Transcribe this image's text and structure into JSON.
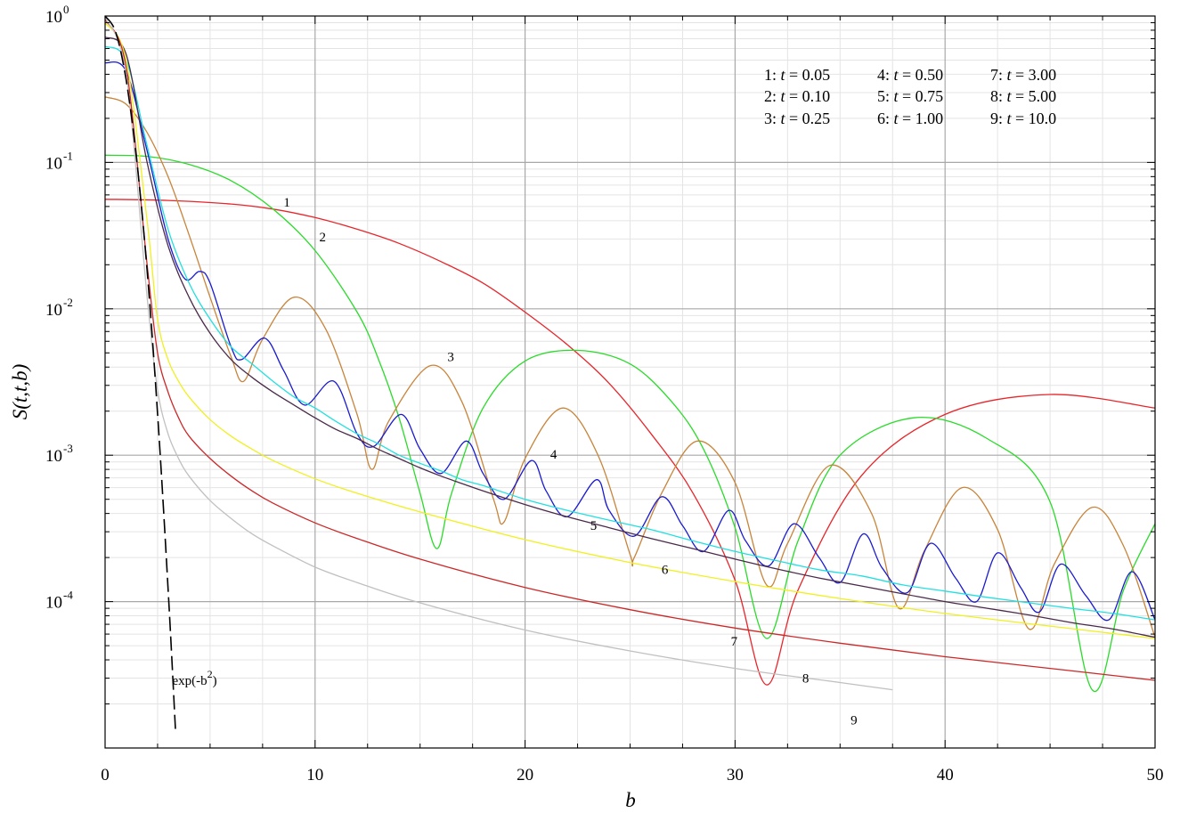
{
  "chart_data": {
    "type": "line",
    "xlabel": "b",
    "ylabel": "S(t,t,b)",
    "xlim": [
      0,
      50
    ],
    "ylim": [
      1e-05,
      1
    ],
    "yscale": "log",
    "grid": true,
    "x_ticks": [
      "0",
      "10",
      "20",
      "30",
      "40",
      "50"
    ],
    "y_ticks": [
      {
        "base": "10",
        "exp": "0",
        "value": 1
      },
      {
        "base": "10",
        "exp": "-1",
        "value": 0.1
      },
      {
        "base": "10",
        "exp": "-2",
        "value": 0.01
      },
      {
        "base": "10",
        "exp": "-3",
        "value": 0.001
      },
      {
        "base": "10",
        "exp": "-4",
        "value": 0.0001
      }
    ],
    "legend": {
      "placement": "top-right",
      "entries": [
        "1:  t = 0.05",
        "2:  t = 0.10",
        "3:  t = 0.25",
        "4:  t = 0.50",
        "5:  t = 0.75",
        "6:  t = 1.00",
        "7:  t = 3.00",
        "8:  t = 5.00",
        "9:  t = 10.0"
      ]
    },
    "series": [
      {
        "id": "1",
        "color": "#e8252a",
        "x": [
          0,
          3,
          6,
          8,
          10,
          12,
          14,
          16,
          18,
          20,
          22,
          24,
          26,
          28,
          30,
          31.5,
          33,
          36,
          40,
          45,
          50
        ],
        "y": [
          0.056,
          0.055,
          0.052,
          0.048,
          0.042,
          0.035,
          0.028,
          0.021,
          0.015,
          0.0095,
          0.0057,
          0.0031,
          0.0014,
          0.00055,
          0.00014,
          2.7e-05,
          0.00012,
          0.00072,
          0.0019,
          0.0026,
          0.0021
        ]
      },
      {
        "id": "2",
        "color": "#2adb2a",
        "x": [
          0,
          2,
          4,
          6,
          8,
          10,
          12,
          13,
          14,
          15,
          15.8,
          16.5,
          18,
          20,
          22.5,
          25,
          27,
          28.5,
          30,
          31.5,
          33,
          35,
          38.5,
          42,
          45,
          47,
          48.5,
          50
        ],
        "y": [
          0.112,
          0.11,
          0.097,
          0.075,
          0.048,
          0.025,
          0.0095,
          0.0046,
          0.0018,
          0.00055,
          0.00023,
          0.00055,
          0.0021,
          0.0044,
          0.0052,
          0.0042,
          0.0023,
          0.0011,
          0.00032,
          5.6e-05,
          0.00026,
          0.001,
          0.0018,
          0.0013,
          0.00048,
          2.5e-05,
          0.00012,
          0.00034
        ]
      },
      {
        "id": "3",
        "color": "#c8843a",
        "x": [
          0,
          1,
          2,
          3,
          4,
          5,
          6,
          6.6,
          7.5,
          9,
          10.5,
          12,
          12.7,
          13.5,
          15.5,
          17,
          18.5,
          19,
          20,
          21.8,
          23.5,
          25,
          25.2,
          26.5,
          28.2,
          30,
          31.5,
          32.5,
          34.5,
          36.5,
          37.8,
          39,
          40.8,
          42.5,
          44,
          45.2,
          47,
          48.5,
          50
        ],
        "y": [
          0.28,
          0.25,
          0.16,
          0.08,
          0.032,
          0.012,
          0.0047,
          0.0032,
          0.0062,
          0.012,
          0.0073,
          0.0019,
          0.0008,
          0.0017,
          0.0041,
          0.0023,
          0.0005,
          0.00035,
          0.00095,
          0.0021,
          0.00098,
          0.00021,
          0.0002,
          0.00055,
          0.00125,
          0.00065,
          0.00013,
          0.00025,
          0.00085,
          0.0004,
          9e-05,
          0.00022,
          0.0006,
          0.00031,
          6.5e-05,
          0.00018,
          0.00044,
          0.00024,
          5.7e-05
        ]
      },
      {
        "id": "4",
        "color": "#1a1ad0",
        "x": [
          0,
          1,
          2,
          3,
          3.8,
          4.5,
          5,
          6,
          6.5,
          7.6,
          8.5,
          9.5,
          10.9,
          12,
          12.8,
          14.1,
          15,
          16,
          17.2,
          18,
          19,
          20.3,
          21,
          22,
          23.4,
          24,
          25.2,
          26.5,
          27.5,
          28.5,
          29.7,
          30.5,
          31.6,
          32.8,
          34,
          35,
          36.1,
          37,
          38.2,
          39.3,
          40.5,
          41.5,
          42.5,
          43.6,
          44.5,
          45.5,
          46.7,
          47.8,
          48.9,
          50
        ],
        "y": [
          0.48,
          0.42,
          0.12,
          0.03,
          0.016,
          0.018,
          0.015,
          0.0055,
          0.0045,
          0.0063,
          0.0038,
          0.0022,
          0.0032,
          0.0014,
          0.00115,
          0.0019,
          0.0011,
          0.00075,
          0.00125,
          0.00075,
          0.0005,
          0.00092,
          0.00057,
          0.00038,
          0.00068,
          0.00042,
          0.00028,
          0.00052,
          0.00033,
          0.00022,
          0.00042,
          0.00026,
          0.000175,
          0.00034,
          0.0002,
          0.000135,
          0.00029,
          0.00017,
          0.000115,
          0.00025,
          0.000145,
          0.0001,
          0.000215,
          0.000125,
          8.5e-05,
          0.00018,
          0.00011,
          7.5e-05,
          0.00016,
          7.5e-05
        ]
      },
      {
        "id": "5",
        "color": "#22e0e0",
        "x": [
          0,
          1,
          2,
          3,
          4,
          5,
          6,
          7,
          8,
          9,
          10,
          11,
          12,
          13,
          14,
          15,
          16,
          17,
          18,
          20,
          22,
          24,
          26,
          28,
          30,
          32,
          34,
          36,
          38,
          40,
          42,
          44,
          46,
          48,
          50
        ],
        "y": [
          0.62,
          0.5,
          0.13,
          0.035,
          0.015,
          0.0085,
          0.0055,
          0.0042,
          0.0032,
          0.0025,
          0.0021,
          0.0017,
          0.0014,
          0.0012,
          0.001,
          0.00088,
          0.00078,
          0.00068,
          0.00062,
          0.0005,
          0.00042,
          0.00036,
          0.00031,
          0.00026,
          0.00022,
          0.00019,
          0.000165,
          0.00015,
          0.00013,
          0.000118,
          0.000107,
          9.8e-05,
          9e-05,
          8.3e-05,
          7.5e-05
        ]
      },
      {
        "id": "6",
        "color": "#4a2a4a",
        "x": [
          0,
          1,
          2,
          3,
          4,
          5,
          6,
          7,
          8,
          9,
          10,
          11,
          12,
          13,
          14,
          15,
          16,
          17,
          18,
          20,
          22,
          24,
          26,
          28,
          30,
          32,
          34,
          36,
          38,
          40,
          42,
          44,
          46,
          48,
          50
        ],
        "y": [
          0.72,
          0.55,
          0.1,
          0.027,
          0.012,
          0.0068,
          0.0045,
          0.0034,
          0.0027,
          0.0022,
          0.0018,
          0.0015,
          0.0013,
          0.0011,
          0.00095,
          0.00082,
          0.00072,
          0.00064,
          0.00057,
          0.00046,
          0.00038,
          0.00032,
          0.00027,
          0.00023,
          0.000195,
          0.000167,
          0.000145,
          0.000128,
          0.000113,
          0.0001,
          9e-05,
          8.1e-05,
          7.2e-05,
          6.5e-05,
          5.7e-05
        ]
      },
      {
        "id": "7",
        "color": "#f0f020",
        "x": [
          0,
          1,
          2,
          2.5,
          3,
          3.5,
          4,
          5,
          6,
          7,
          8,
          10,
          12,
          15,
          20,
          25,
          30,
          35,
          40,
          45,
          50
        ],
        "y": [
          0.9,
          0.5,
          0.04,
          0.0085,
          0.0045,
          0.0032,
          0.0025,
          0.00175,
          0.00135,
          0.0011,
          0.00092,
          0.00069,
          0.00055,
          0.00041,
          0.000265,
          0.000185,
          0.000137,
          0.000105,
          8.3e-05,
          6.8e-05,
          5.6e-05
        ]
      },
      {
        "id": "8",
        "color": "#cc2828",
        "x": [
          0,
          1,
          2,
          2.5,
          3,
          3.5,
          4,
          5,
          6,
          7,
          8,
          10,
          12,
          15,
          20,
          25,
          30,
          35,
          40,
          45,
          50
        ],
        "y": [
          0.95,
          0.45,
          0.02,
          0.005,
          0.0027,
          0.0018,
          0.00135,
          0.00095,
          0.00072,
          0.00057,
          0.00047,
          0.000345,
          0.00027,
          0.000195,
          0.000125,
          8.8e-05,
          6.6e-05,
          5.2e-05,
          4.2e-05,
          3.5e-05,
          2.9e-05
        ]
      },
      {
        "id": "9",
        "color": "#c0c0c0",
        "x": [
          0,
          1,
          2,
          2.5,
          3,
          3.5,
          4,
          5,
          6,
          7,
          8,
          10,
          12,
          15,
          20,
          25,
          30,
          35,
          37.5
        ],
        "y": [
          0.98,
          0.4,
          0.012,
          0.0028,
          0.0014,
          0.00095,
          0.00072,
          0.00049,
          0.00037,
          0.00029,
          0.00024,
          0.000172,
          0.000135,
          9.8e-05,
          6.4e-05,
          4.6e-05,
          3.5e-05,
          2.8e-05,
          2.5e-05
        ]
      },
      {
        "id": "exp(-b2)",
        "color": "#000000",
        "dashed": true,
        "x": [
          0,
          0.5,
          1,
          1.5,
          2,
          2.5,
          3,
          3.35
        ],
        "y": [
          1,
          0.7788,
          0.3679,
          0.1054,
          0.0183,
          0.00193,
          0.000123,
          1.34e-05
        ]
      }
    ],
    "annotations": [
      {
        "text": "1",
        "x": 8.5,
        "y": 0.05
      },
      {
        "text": "2",
        "x": 10.2,
        "y": 0.029
      },
      {
        "text": "3",
        "x": 16.3,
        "y": 0.0044
      },
      {
        "text": "4",
        "x": 21.2,
        "y": 0.00095
      },
      {
        "text": "5",
        "x": 23.1,
        "y": 0.00031
      },
      {
        "text": "6",
        "x": 26.5,
        "y": 0.000155
      },
      {
        "text": "7",
        "x": 29.8,
        "y": 5e-05
      },
      {
        "text": "8",
        "x": 33.2,
        "y": 2.8e-05
      },
      {
        "text": "9",
        "x": 35.5,
        "y": 1.45e-05
      },
      {
        "text": "exp(-b",
        "sup": "2",
        "tail": ")",
        "x": 3.2,
        "y": 2.7e-05
      }
    ]
  }
}
